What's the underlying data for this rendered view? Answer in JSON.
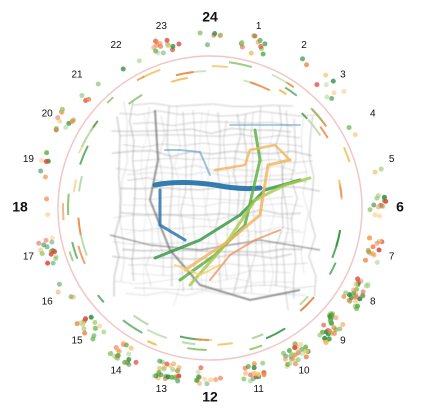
{
  "clock": {
    "hours": [
      "24",
      "1",
      "2",
      "3",
      "4",
      "5",
      "6",
      "7",
      "8",
      "9",
      "10",
      "11",
      "12",
      "13",
      "14",
      "15",
      "16",
      "17",
      "18",
      "19",
      "20",
      "21",
      "22",
      "23"
    ]
  }
}
